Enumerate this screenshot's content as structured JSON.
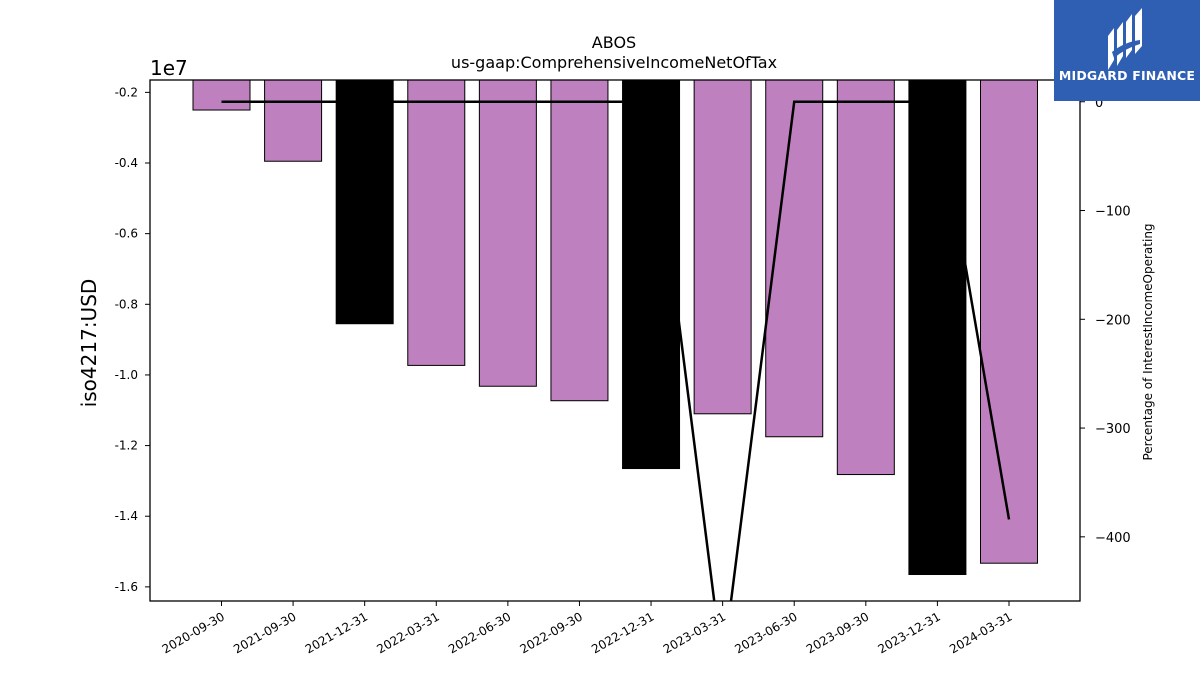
{
  "chart_data": {
    "type": "bar",
    "title": "ABOS",
    "subtitle": "us-gaap:ComprehensiveIncomeNetOfTax",
    "ylabel": "iso4217:USD",
    "y_offset_label": "1e7",
    "y2label": "Percentage of InterestIncomeOperating",
    "categories": [
      "2020-09-30",
      "2021-09-30",
      "2021-12-31",
      "2022-03-31",
      "2022-06-30",
      "2022-09-30",
      "2022-12-31",
      "2023-03-31",
      "2023-06-30",
      "2023-09-30",
      "2023-12-31",
      "2024-03-31"
    ],
    "series": [
      {
        "values": [
          -2500000,
          -3950000,
          -8550000,
          -9730000,
          -10320000,
          -10730000,
          -12650000,
          -11100000,
          -11750000,
          -12820000,
          -15650000,
          -15330000
        ],
        "colors": [
          "#bf80bf",
          "#bf80bf",
          "#000000",
          "#bf80bf",
          "#bf80bf",
          "#bf80bf",
          "#000000",
          "#bf80bf",
          "#bf80bf",
          "#bf80bf",
          "#000000",
          "#bf80bf"
        ]
      },
      {
        "axis": "right",
        "type": "line",
        "color": "#000000",
        "values": [
          0,
          0,
          0,
          0,
          0,
          0,
          0,
          -520,
          0,
          0,
          0,
          -384
        ]
      }
    ],
    "ylim": [
      -16400000,
      -1650000
    ],
    "yticks": [
      -1.6,
      -1.4,
      -1.2,
      -1.0,
      -0.8,
      -0.6,
      -0.4,
      -0.2
    ],
    "y2lim": [
      -459,
      20
    ],
    "y2ticks": [
      0,
      -100,
      -200,
      -300,
      -400
    ],
    "y2tick_labels": [
      "0",
      "−100",
      "−200",
      "−300",
      "−400"
    ]
  },
  "logo": {
    "name": "MIDGARD FINANCE",
    "bg_color": "#2f5fb3"
  }
}
